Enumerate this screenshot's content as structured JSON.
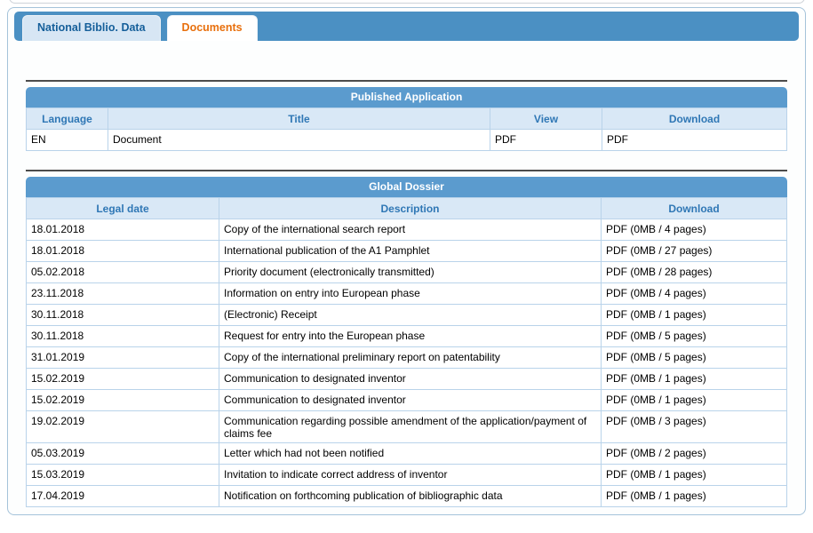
{
  "tabs": [
    {
      "label": "National Biblio. Data",
      "active": false
    },
    {
      "label": "Documents",
      "active": true
    }
  ],
  "published_application": {
    "title": "Published Application",
    "columns": [
      "Language",
      "Title",
      "View",
      "Download"
    ],
    "rows": [
      {
        "language": "EN",
        "title": "Document",
        "view": "PDF",
        "download": "PDF"
      }
    ]
  },
  "global_dossier": {
    "title": "Global Dossier",
    "columns": [
      "Legal date",
      "Description",
      "Download"
    ],
    "rows": [
      {
        "legal_date": "18.01.2018",
        "description": "Copy of the international search report",
        "download": "PDF (0MB / 4 pages)"
      },
      {
        "legal_date": "18.01.2018",
        "description": "International publication of the A1 Pamphlet",
        "download": "PDF (0MB / 27 pages)"
      },
      {
        "legal_date": "05.02.2018",
        "description": "Priority document (electronically transmitted)",
        "download": "PDF (0MB / 28 pages)"
      },
      {
        "legal_date": "23.11.2018",
        "description": "Information on entry into European phase",
        "download": "PDF (0MB / 4 pages)"
      },
      {
        "legal_date": "30.11.2018",
        "description": "(Electronic) Receipt",
        "download": "PDF (0MB / 1 pages)"
      },
      {
        "legal_date": "30.11.2018",
        "description": "Request for entry into the European phase",
        "download": "PDF (0MB / 5 pages)"
      },
      {
        "legal_date": "31.01.2019",
        "description": "Copy of the international preliminary report on patentability",
        "download": "PDF (0MB / 5 pages)"
      },
      {
        "legal_date": "15.02.2019",
        "description": "Communication to designated inventor",
        "download": "PDF (0MB / 1 pages)"
      },
      {
        "legal_date": "15.02.2019",
        "description": "Communication to designated inventor",
        "download": "PDF (0MB / 1 pages)"
      },
      {
        "legal_date": "19.02.2019",
        "description": "Communication regarding possible amendment of the application/payment of claims fee",
        "download": "PDF (0MB / 3 pages)"
      },
      {
        "legal_date": "05.03.2019",
        "description": "Letter which had not been notified",
        "download": "PDF (0MB / 2 pages)"
      },
      {
        "legal_date": "15.03.2019",
        "description": "Invitation to indicate correct address of inventor",
        "download": "PDF (0MB / 1 pages)"
      },
      {
        "legal_date": "17.04.2019",
        "description": "Notification on forthcoming publication of bibliographic data",
        "download": "PDF (0MB / 1 pages)"
      }
    ]
  },
  "colors": {
    "header_blue": "#5b9bce",
    "tabstrip_blue": "#4b90c3",
    "subheader_bg": "#d9e8f6",
    "subheader_text": "#2f77b5",
    "active_tab_text": "#e8700e",
    "inactive_tab_text": "#155f9a",
    "cell_border": "#b9d3ea",
    "panel_border": "#a5c3da",
    "rule_dark": "#4c4c4c"
  }
}
